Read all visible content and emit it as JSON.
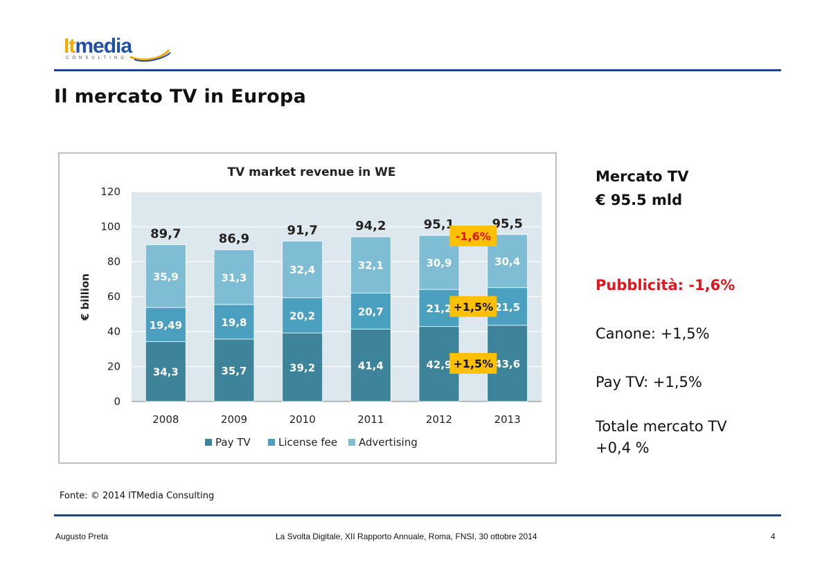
{
  "logo": {
    "brand": "Itmedia",
    "tagline": "CONSULTING"
  },
  "slide": {
    "title": "Il mercato TV in Europa"
  },
  "side_panel": {
    "heading_line1": "Mercato TV",
    "heading_line2": "€ 95.5 mld",
    "advertising": "Pubblicità: -1,6%",
    "license": "Canone: +1,5%",
    "paytv": "Pay TV: +1,5%",
    "total_line1": "Totale mercato TV",
    "total_line2": "+0,4 %"
  },
  "source": "Fonte: © 2014 ITMedia Consulting",
  "footer": {
    "author": "Augusto Preta",
    "event": "La Svolta Digitale, XII Rapporto Annuale, Roma, FNSI, 30 ottobre 2014",
    "page": "4"
  },
  "colors": {
    "pay_tv": "#3d8399",
    "license_fee": "#4aa0be",
    "advertising": "#7ebdd4",
    "callout": "#ffc000",
    "callout_negative_text": "#e3141b",
    "rule": "#1f3f8f"
  },
  "chart_data": {
    "type": "bar",
    "stacked": true,
    "title": "TV market revenue in WE",
    "ylabel": "€ billion",
    "ylim": [
      0,
      120
    ],
    "yticks": [
      0,
      20,
      40,
      60,
      80,
      100,
      120
    ],
    "grid": true,
    "legend_position": "bottom",
    "categories": [
      "2008",
      "2009",
      "2010",
      "2011",
      "2012",
      "2013"
    ],
    "series": [
      {
        "name": "Pay TV",
        "values": [
          34.3,
          35.7,
          39.2,
          41.4,
          42.9,
          43.6
        ],
        "labels": [
          "34,3",
          "35,7",
          "39,2",
          "41,4",
          "42,9",
          "43,6"
        ]
      },
      {
        "name": "License fee",
        "values": [
          19.49,
          19.8,
          20.2,
          20.7,
          21.2,
          21.5
        ],
        "labels": [
          "19,49",
          "19,8",
          "20,2",
          "20,7",
          "21,2",
          "21,5"
        ]
      },
      {
        "name": "Advertising",
        "values": [
          35.9,
          31.3,
          32.4,
          32.1,
          30.9,
          30.4
        ],
        "labels": [
          "35,9",
          "31,3",
          "32,4",
          "32,1",
          "30,9",
          "30,4"
        ]
      }
    ],
    "totals": [
      89.7,
      86.9,
      91.7,
      94.2,
      95.1,
      95.5
    ],
    "total_labels": [
      "89,7",
      "86,9",
      "91,7",
      "94,2",
      "95,1",
      "95,5"
    ],
    "callouts": [
      {
        "text": "-1,6%",
        "series": "Advertising",
        "negative": true
      },
      {
        "text": "+1,5%",
        "series": "License fee",
        "negative": false
      },
      {
        "text": "+1,5%",
        "series": "Pay TV",
        "negative": false
      }
    ]
  }
}
